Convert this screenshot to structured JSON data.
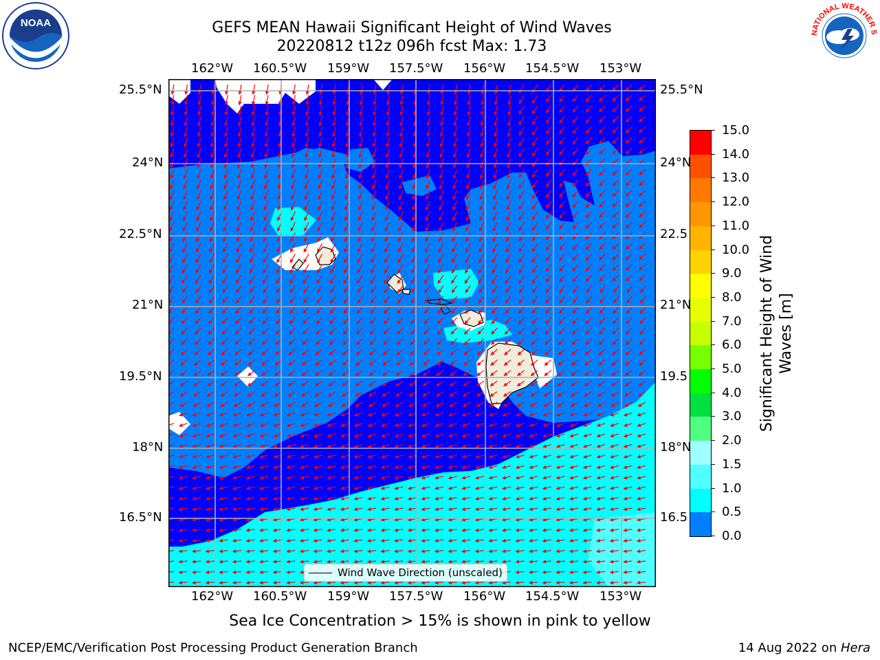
{
  "title": {
    "line1": "GEFS MEAN Hawaii Significant Height of Wind Waves",
    "line2": "20220812 t12z 096h fcst   Max: 1.73"
  },
  "logos": {
    "left": "NOAA",
    "right": "NATIONAL WEATHER SERVICE"
  },
  "map": {
    "lon_ticks": [
      "162°W",
      "160.5°W",
      "159°W",
      "157.5°W",
      "156°W",
      "154.5°W",
      "153°W"
    ],
    "lat_ticks": [
      "25.5°N",
      "24°N",
      "22.5°N",
      "21°N",
      "19.5°N",
      "18°N",
      "16.5°N"
    ],
    "lat_ticks_right": [
      "25.5°N",
      "24°N",
      "22.5",
      "21°N",
      "19.5",
      "18°N",
      "16.5"
    ],
    "legend_label": "Wind Wave Direction (unscaled)",
    "land_color": "#efecdc",
    "arrow_color": "#ff0000",
    "grid_color": "#b0b0b0"
  },
  "colorbar": {
    "title_line1": "Significant Height of Wind",
    "title_line2": "Waves [m]",
    "labels": [
      "15.0",
      "14.0",
      "13.0",
      "12.0",
      "11.0",
      "10.0",
      "9.0",
      "8.0",
      "7.0",
      "6.0",
      "5.0",
      "4.0",
      "3.0",
      "2.0",
      "1.5",
      "1.0",
      "0.5",
      "0.0"
    ],
    "colors_top_to_bottom": [
      "#ff0000",
      "#ff2800",
      "#ff5000",
      "#ff7800",
      "#ff9600",
      "#ffb400",
      "#ffd200",
      "#ffff00",
      "#e6ff00",
      "#c8ff00",
      "#78ff00",
      "#00ff00",
      "#00e040",
      "#50ff80",
      "#a0ffff",
      "#50ffff",
      "#00ffff",
      "#0080ff",
      "#0000ff"
    ]
  },
  "note": "Sea Ice Concentration > 15% is shown in pink to yellow",
  "footer": {
    "left": "NCEP/EMC/Verification Post Processing Product Generation Branch",
    "date": "14 Aug 2022 on ",
    "machine": "Hera"
  }
}
